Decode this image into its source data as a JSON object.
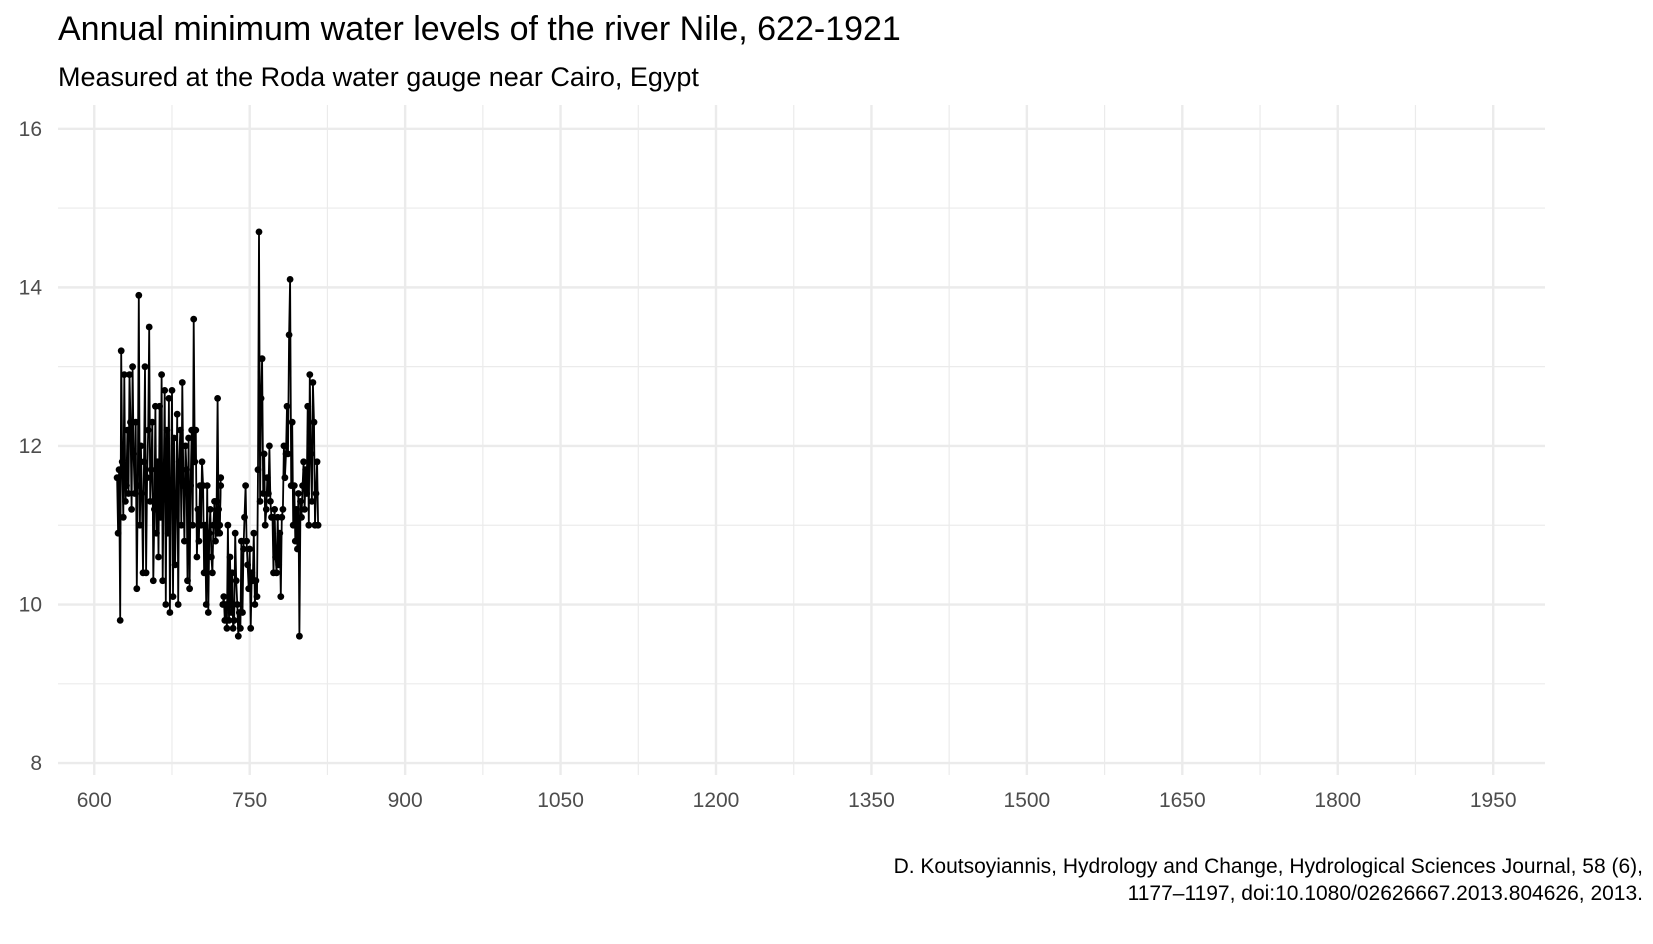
{
  "chart_data": {
    "type": "line",
    "title": "Annual minimum water levels of the river Nile, 622-1921",
    "subtitle": "Measured at the Roda water gauge near Cairo, Egypt",
    "caption_lines": [
      "D. Koutsoyiannis, Hydrology and Change, Hydrological Sciences Journal, 58 (6),",
      "1177–1197, doi:10.1080/02626667.2013.804626, 2013."
    ],
    "xlabel": "",
    "ylabel": "",
    "xlim": [
      565,
      2000
    ],
    "ylim": [
      7.85,
      16.3
    ],
    "x_ticks": [
      "600",
      "750",
      "900",
      "1050",
      "1200",
      "1350",
      "1500",
      "1650",
      "1800",
      "1950"
    ],
    "y_ticks": [
      "8",
      "10",
      "12",
      "14",
      "16"
    ],
    "grid": true,
    "legend": "none",
    "colors": {
      "line": "#000000",
      "point": "#000000",
      "grid": "#ebebeb",
      "tick_text": "#4d4d4d"
    },
    "series": [
      {
        "segments": [
          [
            [
              622,
              11.6
            ],
            [
              623,
              10.9
            ],
            [
              624,
              11.7
            ],
            [
              625,
              9.8
            ],
            [
              626,
              13.2
            ],
            [
              627,
              11.8
            ],
            [
              628,
              11.1
            ],
            [
              629,
              12.9
            ],
            [
              630,
              11.3
            ],
            [
              631,
              11.5
            ],
            [
              632,
              12.2
            ],
            [
              633,
              11.4
            ],
            [
              634,
              12.9
            ],
            [
              635,
              12.3
            ],
            [
              636,
              11.2
            ],
            [
              637,
              13.0
            ],
            [
              638,
              11.9
            ],
            [
              639,
              11.4
            ],
            [
              640,
              12.3
            ],
            [
              641,
              10.2
            ],
            [
              642,
              11.5
            ],
            [
              643,
              13.9
            ],
            [
              644,
              11.0
            ],
            [
              645,
              12.0
            ],
            [
              646,
              11.4
            ],
            [
              647,
              10.4
            ],
            [
              648,
              11.8
            ],
            [
              649,
              13.0
            ],
            [
              650,
              10.4
            ],
            [
              651,
              11.6
            ],
            [
              652,
              12.2
            ],
            [
              653,
              13.5
            ],
            [
              654,
              11.3
            ],
            [
              655,
              11.7
            ],
            [
              656,
              12.3
            ],
            [
              657,
              10.3
            ],
            [
              658,
              11.2
            ],
            [
              659,
              12.5
            ],
            [
              660,
              10.9
            ],
            [
              661,
              11.8
            ],
            [
              662,
              10.6
            ],
            [
              663,
              12.5
            ],
            [
              664,
              11.1
            ],
            [
              665,
              12.9
            ],
            [
              666,
              10.3
            ],
            [
              667,
              11.6
            ],
            [
              668,
              12.7
            ],
            [
              669,
              10.0
            ],
            [
              670,
              12.2
            ],
            [
              671,
              10.9
            ],
            [
              672,
              12.6
            ],
            [
              673,
              9.9
            ],
            [
              674,
              11.4
            ],
            [
              675,
              12.7
            ],
            [
              676,
              10.1
            ],
            [
              677,
              12.1
            ],
            [
              678,
              10.5
            ],
            [
              679,
              11.2
            ],
            [
              680,
              12.4
            ],
            [
              681,
              10.0
            ],
            [
              682,
              11.8
            ],
            [
              683,
              12.2
            ],
            [
              684,
              11.0
            ],
            [
              685,
              12.8
            ],
            [
              686,
              11.5
            ],
            [
              687,
              10.8
            ],
            [
              688,
              12.0
            ],
            [
              689,
              11.7
            ],
            [
              690,
              10.3
            ],
            [
              691,
              12.1
            ],
            [
              692,
              10.2
            ],
            [
              693,
              11.5
            ],
            [
              694,
              12.2
            ],
            [
              695,
              11.0
            ],
            [
              696,
              13.6
            ],
            [
              697,
              11.8
            ],
            [
              698,
              12.2
            ],
            [
              699,
              10.6
            ],
            [
              700,
              11.2
            ],
            [
              701,
              10.8
            ],
            [
              702,
              11.5
            ],
            [
              703,
              11.0
            ],
            [
              704,
              11.8
            ],
            [
              705,
              11.5
            ],
            [
              706,
              10.4
            ],
            [
              707,
              11.0
            ],
            [
              708,
              10.0
            ],
            [
              709,
              11.5
            ],
            [
              710,
              9.9
            ],
            [
              711,
              10.9
            ],
            [
              712,
              11.2
            ],
            [
              713,
              10.6
            ],
            [
              714,
              10.4
            ],
            [
              715,
              11.0
            ],
            [
              716,
              11.3
            ],
            [
              717,
              10.8
            ],
            [
              718,
              11.1
            ],
            [
              719,
              12.6
            ],
            [
              720,
              11.0
            ],
            [
              721,
              10.9
            ],
            [
              722,
              11.5
            ]
          ],
          [
            [
              718,
              11.3
            ],
            [
              719,
              10.9
            ],
            [
              720,
              11.2
            ],
            [
              721,
              11.0
            ],
            [
              722,
              11.6
            ]
          ],
          [
            [
              724,
              10.0
            ],
            [
              725,
              10.1
            ],
            [
              726,
              9.8
            ],
            [
              727,
              10.0
            ],
            [
              728,
              9.7
            ],
            [
              729,
              11.0
            ],
            [
              730,
              9.8
            ],
            [
              731,
              10.6
            ],
            [
              732,
              9.9
            ],
            [
              733,
              10.4
            ],
            [
              734,
              9.7
            ],
            [
              735,
              9.8
            ],
            [
              736,
              10.9
            ],
            [
              737,
              10.3
            ],
            [
              738,
              10.0
            ],
            [
              739,
              9.6
            ],
            [
              740,
              9.9
            ],
            [
              741,
              9.7
            ],
            [
              742,
              10.8
            ],
            [
              743,
              9.9
            ],
            [
              744,
              10.7
            ],
            [
              745,
              11.1
            ],
            [
              746,
              11.5
            ],
            [
              747,
              10.8
            ],
            [
              748,
              10.5
            ],
            [
              749,
              10.2
            ],
            [
              750,
              10.7
            ],
            [
              751,
              9.7
            ],
            [
              752,
              10.4
            ],
            [
              753,
              10.3
            ],
            [
              754,
              10.9
            ],
            [
              755,
              10.0
            ],
            [
              756,
              10.3
            ],
            [
              757,
              10.1
            ],
            [
              758,
              11.7
            ],
            [
              759,
              14.7
            ],
            [
              760,
              11.3
            ],
            [
              761,
              12.6
            ],
            [
              762,
              13.1
            ],
            [
              763,
              11.4
            ],
            [
              764,
              11.9
            ],
            [
              765,
              11.0
            ],
            [
              766,
              11.2
            ],
            [
              767,
              11.6
            ],
            [
              768,
              11.4
            ],
            [
              769,
              12.0
            ],
            [
              770,
              11.3
            ],
            [
              771,
              11.1
            ],
            [
              772,
              11.1
            ],
            [
              773,
              10.4
            ],
            [
              774,
              11.2
            ],
            [
              775,
              10.6
            ],
            [
              776,
              10.4
            ],
            [
              777,
              11.1
            ],
            [
              778,
              10.5
            ],
            [
              779,
              10.9
            ],
            [
              780,
              10.1
            ],
            [
              781,
              11.1
            ],
            [
              782,
              11.2
            ],
            [
              783,
              12.0
            ],
            [
              784,
              11.6
            ],
            [
              785,
              11.9
            ],
            [
              786,
              12.5
            ],
            [
              787,
              11.9
            ],
            [
              788,
              13.4
            ],
            [
              789,
              14.1
            ],
            [
              790,
              11.5
            ],
            [
              791,
              12.3
            ],
            [
              792,
              11.0
            ],
            [
              793,
              11.5
            ],
            [
              794,
              10.8
            ],
            [
              795,
              11.2
            ],
            [
              796,
              10.7
            ],
            [
              797,
              11.4
            ],
            [
              798,
              9.6
            ],
            [
              799,
              11.3
            ],
            [
              800,
              11.1
            ],
            [
              801,
              11.5
            ],
            [
              802,
              11.8
            ],
            [
              803,
              11.2
            ],
            [
              804,
              11.7
            ],
            [
              805,
              11.4
            ],
            [
              806,
              12.5
            ],
            [
              807,
              11.0
            ],
            [
              808,
              12.9
            ],
            [
              809,
              11.9
            ],
            [
              810,
              11.3
            ],
            [
              811,
              12.8
            ],
            [
              812,
              12.3
            ],
            [
              813,
              11.0
            ],
            [
              814,
              11.4
            ],
            [
              815,
              11.8
            ],
            [
              816,
              11.0
            ]
          ]
        ]
      }
    ]
  }
}
